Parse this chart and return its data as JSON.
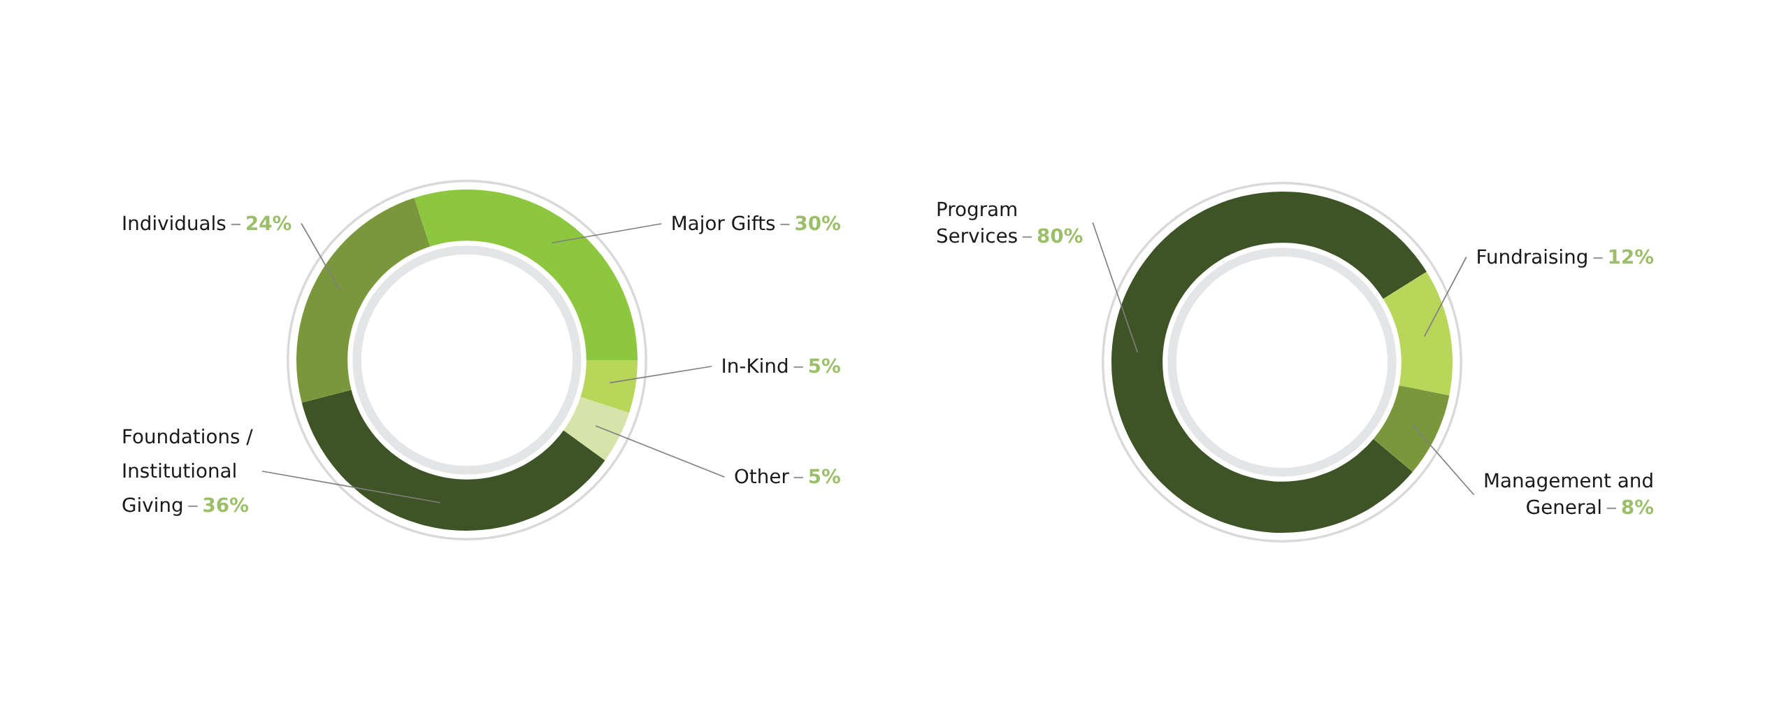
{
  "chart_data": [
    {
      "type": "donut",
      "categories": [
        "Major Gifts",
        "In-Kind",
        "Other",
        "Foundations /\nInstitutional\nGiving",
        "Individuals"
      ],
      "values": [
        30,
        5,
        5,
        36,
        24
      ],
      "colors": [
        "#8dc63f",
        "#b8d65a",
        "#d6e4a9",
        "#3e5426",
        "#7a983b"
      ],
      "value_labels": [
        "30%",
        "5%",
        "5%",
        "36%",
        "24%"
      ]
    },
    {
      "type": "donut",
      "categories": [
        "Program\nServices",
        "Fundraising",
        "Management and\nGeneral"
      ],
      "values": [
        80,
        12,
        8
      ],
      "colors": [
        "#3e5426",
        "#b8d65a",
        "#7a983b"
      ],
      "value_labels": [
        "80%",
        "12%",
        "8%"
      ]
    }
  ]
}
